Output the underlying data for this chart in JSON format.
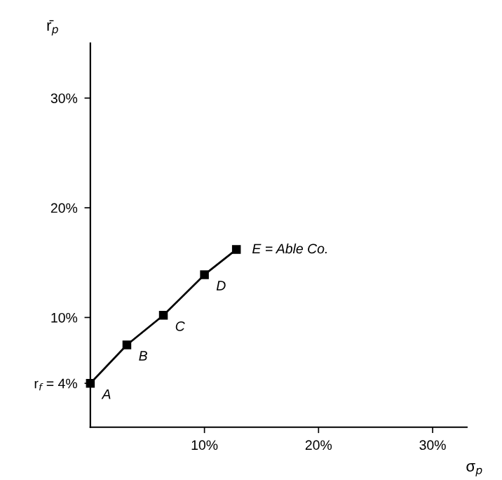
{
  "chart_data": {
    "type": "line",
    "xlabel": "σ$_{p}$",
    "ylabel": "r̄$_{p}$",
    "x": [
      0,
      3.2,
      6.4,
      10,
      12.8
    ],
    "series": [
      {
        "color": "#000000",
        "values": [
          4,
          7.5,
          10.2,
          13.9,
          16.2
        ]
      }
    ],
    "marker": "square",
    "line_style": "solid",
    "xlim": [
      0,
      33
    ],
    "ylim": [
      0,
      35
    ],
    "xticks": [
      {
        "value": 10,
        "label": "10%"
      },
      {
        "value": 20,
        "label": "20%"
      },
      {
        "value": 30,
        "label": "30%"
      }
    ],
    "yticks": [
      {
        "value": 4,
        "label": "r$_{f}$ = 4%"
      },
      {
        "value": 10,
        "label": "10%"
      },
      {
        "value": 20,
        "label": "20%"
      },
      {
        "value": 30,
        "label": "30%"
      }
    ],
    "annotations": [
      {
        "text": "A",
        "x": 0,
        "y": 4
      },
      {
        "text": "B",
        "x": 3.2,
        "y": 7.5
      },
      {
        "text": "C",
        "x": 6.4,
        "y": 10.2
      },
      {
        "text": "D",
        "x": 10,
        "y": 13.9
      },
      {
        "text": "E = Able Co.",
        "x": 12.8,
        "y": 16.2
      }
    ],
    "grid": false,
    "legend": false
  }
}
